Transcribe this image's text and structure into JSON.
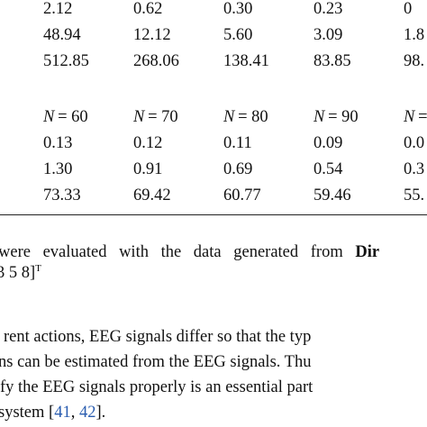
{
  "table": {
    "top_rows": [
      [
        "2.12",
        "0.62",
        "0.30",
        "0.23",
        "0"
      ],
      [
        "48.94",
        "12.12",
        "5.60",
        "3.09",
        "1.8"
      ],
      [
        "512.85",
        "268.06",
        "138.41",
        "83.85",
        "98."
      ]
    ],
    "header": [
      [
        "N",
        "= 60"
      ],
      [
        "N",
        "= 70"
      ],
      [
        "N",
        "= 80"
      ],
      [
        "N",
        "= 90"
      ],
      [
        "N",
        "="
      ]
    ],
    "bottom_rows": [
      [
        "0.13",
        "0.12",
        "0.11",
        "0.09",
        "0.0"
      ],
      [
        "1.30",
        "0.91",
        "0.69",
        "0.54",
        "0.3"
      ],
      [
        "73.33",
        "69.42",
        "60.77",
        "59.46",
        "55."
      ]
    ]
  },
  "caption": {
    "line1": "were evaluated with the data generated from",
    "line1_bold": "Dir",
    "line2": "3 5 8]",
    "line2_sup": "T"
  },
  "paragraph": {
    "lines": [
      "rent actions, EEG signals differ so that the typ",
      "ns can be estimated from the EEG signals. Thu",
      "fy the EEG signals properly is an essential part"
    ],
    "last_prefix": "system [",
    "ref1": "41",
    "sep": ", ",
    "ref2": "42",
    "last_suffix": "]."
  }
}
